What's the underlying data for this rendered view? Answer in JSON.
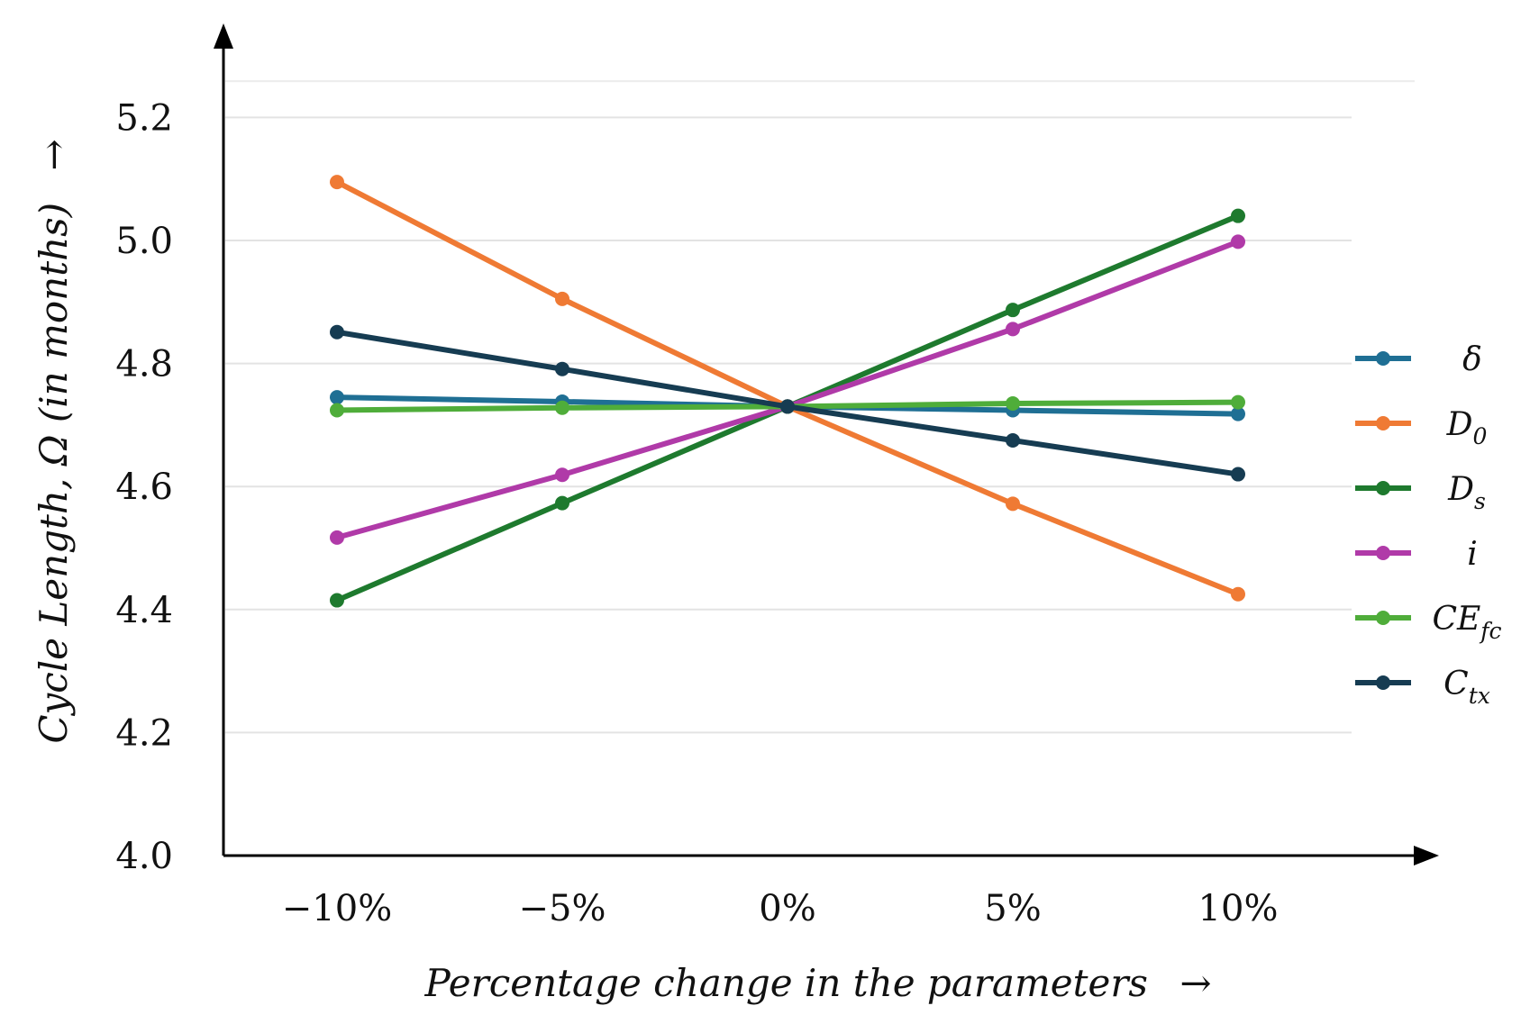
{
  "chart_data": {
    "type": "line",
    "xlabel": "Percentage change in the parameters",
    "xlabel_arrow": "→",
    "ylabel": "Cycle Length, Ω (in months)",
    "ylabel_arrow": "→",
    "categories": [
      "−10%",
      "−5%",
      "0%",
      "5%",
      "10%"
    ],
    "x": [
      -10,
      -5,
      0,
      5,
      10
    ],
    "ylim": [
      4.0,
      5.3
    ],
    "yticks": [
      4.0,
      4.2,
      4.4,
      4.6,
      4.8,
      5.0,
      5.2
    ],
    "ytick_labels": [
      "4.0",
      "4.2",
      "4.4",
      "4.6",
      "4.8",
      "5.0",
      "5.2"
    ],
    "grid": true,
    "legend_position": "right",
    "series": [
      {
        "name": "δ",
        "label_main": "δ",
        "label_sub": "",
        "color": "#1f6f94",
        "values": [
          4.745,
          4.738,
          4.73,
          4.724,
          4.718
        ]
      },
      {
        "name": "D0",
        "label_main": "D",
        "label_sub": "0",
        "color": "#ef7a34",
        "values": [
          5.095,
          4.905,
          4.73,
          4.572,
          4.425
        ]
      },
      {
        "name": "Ds",
        "label_main": "D",
        "label_sub": "s",
        "color": "#1e7a2e",
        "values": [
          4.415,
          4.573,
          4.73,
          4.887,
          5.04
        ]
      },
      {
        "name": "i",
        "label_main": "i",
        "label_sub": "",
        "color": "#b03aa8",
        "values": [
          4.517,
          4.619,
          4.73,
          4.856,
          4.998
        ]
      },
      {
        "name": "CEfc",
        "label_main": "CE",
        "label_sub": "fc",
        "color": "#4fad3a",
        "values": [
          4.724,
          4.728,
          4.73,
          4.735,
          4.737
        ]
      },
      {
        "name": "Ctx",
        "label_main": "C",
        "label_sub": "tx",
        "color": "#163c52",
        "values": [
          4.851,
          4.791,
          4.73,
          4.675,
          4.62
        ]
      }
    ]
  }
}
